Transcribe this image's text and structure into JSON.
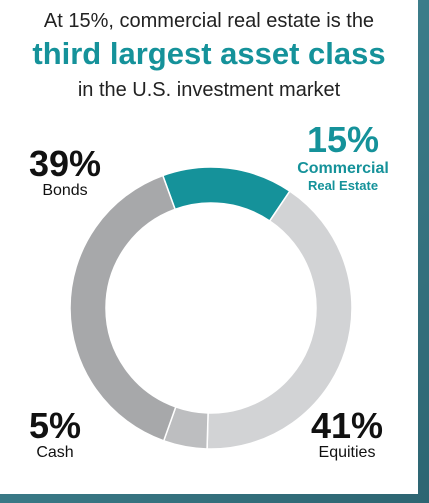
{
  "header": {
    "line1": "At 15%, commercial real estate is the",
    "line2": "third largest asset class",
    "line3": "in the U.S. investment market"
  },
  "chart_data": {
    "type": "pie",
    "categories": [
      "Commercial Real Estate",
      "Equities",
      "Cash",
      "Bonds"
    ],
    "values": [
      15,
      41,
      5,
      39
    ],
    "colors": [
      "#15929a",
      "#d2d3d5",
      "#bdbec0",
      "#a7a8aa"
    ],
    "hole": "donut",
    "labels": [
      {
        "pct": "15%",
        "name_line1": "Commercial",
        "name_line2": "Real Estate"
      },
      {
        "pct": "41%",
        "name_line1": "Equities"
      },
      {
        "pct": "5%",
        "name_line1": "Cash"
      },
      {
        "pct": "39%",
        "name_line1": "Bonds"
      }
    ]
  }
}
